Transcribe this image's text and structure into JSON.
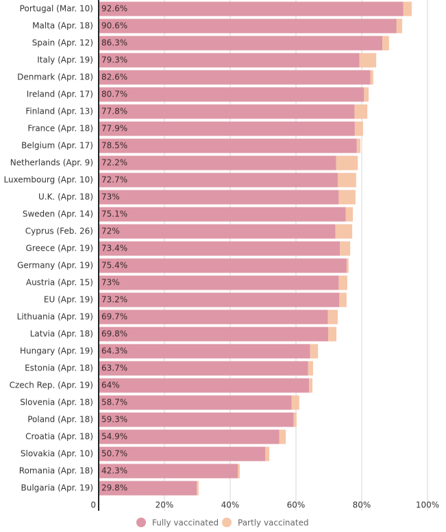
{
  "chart_data": {
    "type": "stacked-bar-horizontal",
    "categories": [
      "Portugal (Mar. 10)",
      "Malta (Apr. 18)",
      "Spain (Apr. 12)",
      "Italy (Apr. 19)",
      "Denmark (Apr. 18)",
      "Ireland (Apr. 17)",
      "Finland (Apr. 13)",
      "France (Apr. 18)",
      "Belgium (Apr. 17)",
      "Netherlands (Apr. 9)",
      "Luxembourg (Apr. 10)",
      "U.K. (Apr. 18)",
      "Sweden (Apr. 14)",
      "Cyprus (Feb. 26)",
      "Greece (Apr. 19)",
      "Germany (Apr. 19)",
      "Austria (Apr. 15)",
      "EU (Apr. 19)",
      "Lithuania (Apr. 19)",
      "Latvia (Apr. 18)",
      "Hungary (Apr. 19)",
      "Estonia (Apr. 18)",
      "Czech Rep. (Apr. 19)",
      "Slovenia (Apr. 18)",
      "Poland (Apr. 18)",
      "Croatia (Apr. 18)",
      "Slovakia (Apr. 10)",
      "Romania (Apr. 18)",
      "Bulgaria (Apr. 19)"
    ],
    "series": [
      {
        "name": "Fully vaccinated",
        "color": "#de97a6",
        "values": [
          92.6,
          90.6,
          86.3,
          79.3,
          82.6,
          80.7,
          77.8,
          77.9,
          78.5,
          72.2,
          72.7,
          73,
          75.1,
          72,
          73.4,
          75.4,
          73,
          73.2,
          69.7,
          69.8,
          64.3,
          63.7,
          64,
          58.7,
          59.3,
          54.9,
          50.7,
          42.3,
          29.8
        ],
        "value_labels": [
          "92.6%",
          "90.6%",
          "86.3%",
          "79.3%",
          "82.6%",
          "80.7%",
          "77.8%",
          "77.9%",
          "78.5%",
          "72.2%",
          "72.7%",
          "73%",
          "75.1%",
          "72%",
          "73.4%",
          "75.4%",
          "73%",
          "73.2%",
          "69.7%",
          "69.8%",
          "64.3%",
          "63.7%",
          "64%",
          "58.7%",
          "59.3%",
          "54.9%",
          "50.7%",
          "42.3%",
          "29.8%"
        ]
      },
      {
        "name": "Partly vaccinated",
        "color": "#f6c6a8",
        "values": [
          2.6,
          1.7,
          2.0,
          5.1,
          0.9,
          1.4,
          3.9,
          2.5,
          1.1,
          6.6,
          5.6,
          5.1,
          2.2,
          5.1,
          3.1,
          0.6,
          2.6,
          2.2,
          3.0,
          2.5,
          2.4,
          1.5,
          1.0,
          2.3,
          0.9,
          2.0,
          1.2,
          0.6,
          0.6
        ]
      }
    ],
    "xlim": [
      0,
      100
    ],
    "xticks": [
      0,
      {
        "value": 20,
        "label": "20%"
      },
      {
        "value": 40,
        "label": "40%"
      },
      {
        "value": 60,
        "label": "60%"
      },
      {
        "value": 80,
        "label": "80%"
      },
      {
        "value": 100,
        "label": "100%"
      }
    ],
    "grid": true
  }
}
